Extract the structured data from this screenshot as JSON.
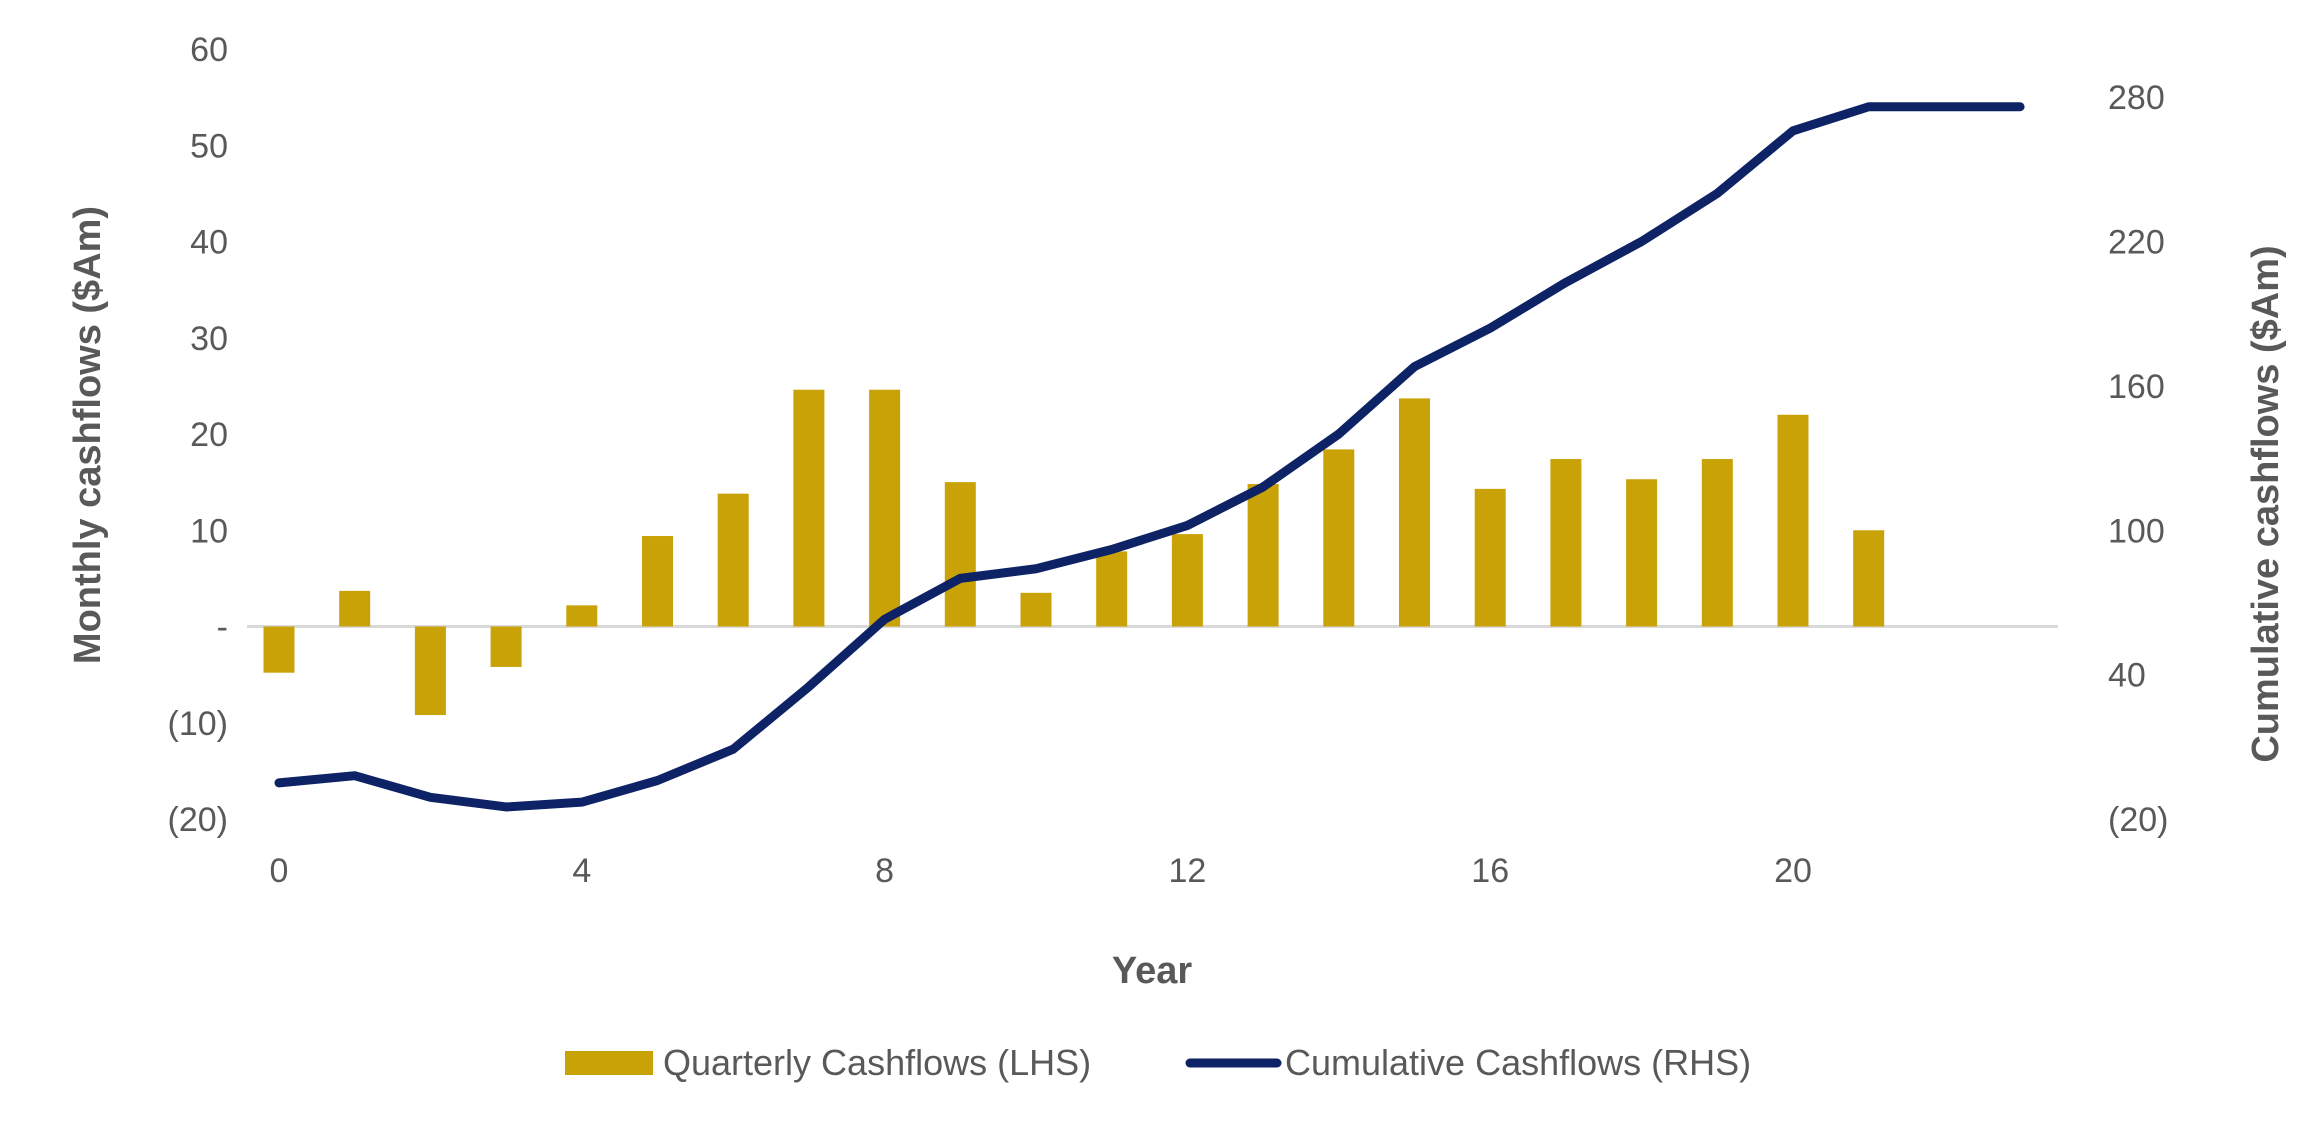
{
  "colors": {
    "bar": "#C9A208",
    "line": "#0D2366",
    "zero_line": "#D9D9D9",
    "text": "#595959"
  },
  "chart_data": {
    "type": "bar",
    "secondary_type": "line",
    "xlabel": "Year",
    "ylabel_left": "Monthly cashflows ($Am)",
    "ylabel_right": "Cumulative cashflows ($Am)",
    "x_ticks": [
      "0",
      "4",
      "8",
      "12",
      "16",
      "20"
    ],
    "x_tick_values": [
      0,
      4,
      8,
      12,
      16,
      20
    ],
    "xlim": [
      0,
      23
    ],
    "left_axis": {
      "ylim": [
        -20,
        60
      ],
      "tick_values": [
        60,
        50,
        40,
        30,
        20,
        10,
        0,
        -10,
        -20
      ],
      "tick_labels": [
        "60",
        "50",
        "40",
        "30",
        "20",
        "10",
        "-",
        "(10)",
        "(20)"
      ]
    },
    "right_axis": {
      "ylim": [
        -20,
        300
      ],
      "tick_values": [
        280,
        220,
        160,
        100,
        40,
        -20
      ],
      "tick_labels": [
        "280",
        "220",
        "160",
        "100",
        "40",
        "(20)"
      ]
    },
    "legend_position": "bottom",
    "series": [
      {
        "name": "Quarterly Cashflows (LHS)",
        "type": "bar",
        "axis": "left",
        "x": [
          0,
          1,
          2,
          3,
          4,
          5,
          6,
          7,
          8,
          9,
          10,
          11,
          12,
          13,
          14,
          15,
          16,
          17,
          18,
          19,
          20,
          21
        ],
        "values": [
          -4.8,
          3.7,
          -9.2,
          -4.2,
          2.2,
          9.4,
          13.8,
          24.6,
          24.6,
          15.0,
          3.5,
          7.8,
          9.6,
          14.8,
          18.4,
          23.7,
          14.3,
          17.4,
          15.3,
          17.4,
          22.0,
          10.0
        ]
      },
      {
        "name": "Cumulative Cashflows (RHS)",
        "type": "line",
        "axis": "right",
        "x": [
          0,
          1,
          2,
          3,
          4,
          5,
          6,
          7,
          8,
          9,
          10,
          11,
          12,
          13,
          14,
          15,
          16,
          17,
          18,
          19,
          20,
          21,
          22,
          23
        ],
        "values": [
          -5,
          -2,
          -11,
          -15,
          -13,
          -4,
          9,
          35,
          63,
          80,
          84,
          92,
          102,
          118,
          140,
          168,
          184,
          203,
          220,
          240,
          266,
          276,
          276,
          276
        ]
      }
    ]
  }
}
